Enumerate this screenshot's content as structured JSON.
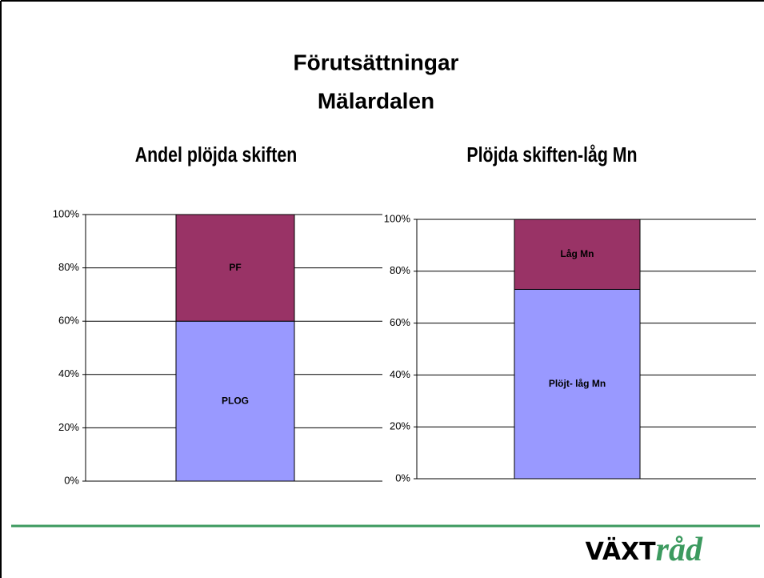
{
  "header": {
    "title": [
      "Förutsättningar",
      "Mälardalen"
    ]
  },
  "chart_data": [
    {
      "type": "stacked_bar",
      "title": "Andel plöjda skiften",
      "categories": [
        null
      ],
      "series": [
        {
          "name": "PLOG",
          "color": "#9999ff",
          "values": [
            60
          ]
        },
        {
          "name": "PF",
          "color": "#993366",
          "values": [
            40
          ]
        }
      ],
      "ylim": [
        0,
        100
      ],
      "yticks": [
        {
          "value": 0,
          "label": "0%"
        },
        {
          "value": 20,
          "label": "20%"
        },
        {
          "value": 40,
          "label": "40%"
        },
        {
          "value": 60,
          "label": "60%"
        },
        {
          "value": 80,
          "label": "80%"
        },
        {
          "value": 100,
          "label": "100%"
        }
      ],
      "grid": true
    },
    {
      "type": "stacked_bar",
      "title": "Plöjda skiften-låg Mn",
      "categories": [
        null
      ],
      "series": [
        {
          "name": "Plöjt- låg Mn",
          "color": "#9999ff",
          "values": [
            73
          ]
        },
        {
          "name": "Låg Mn",
          "color": "#993366",
          "values": [
            27
          ]
        }
      ],
      "ylim": [
        0,
        100
      ],
      "yticks": [
        {
          "value": 0,
          "label": "0%"
        },
        {
          "value": 20,
          "label": "20%"
        },
        {
          "value": 40,
          "label": "40%"
        },
        {
          "value": 60,
          "label": "60%"
        },
        {
          "value": 80,
          "label": "80%"
        },
        {
          "value": 100,
          "label": "100%"
        }
      ],
      "grid": true
    }
  ],
  "logo": {
    "bold": "VÄXT",
    "script": "råd"
  }
}
